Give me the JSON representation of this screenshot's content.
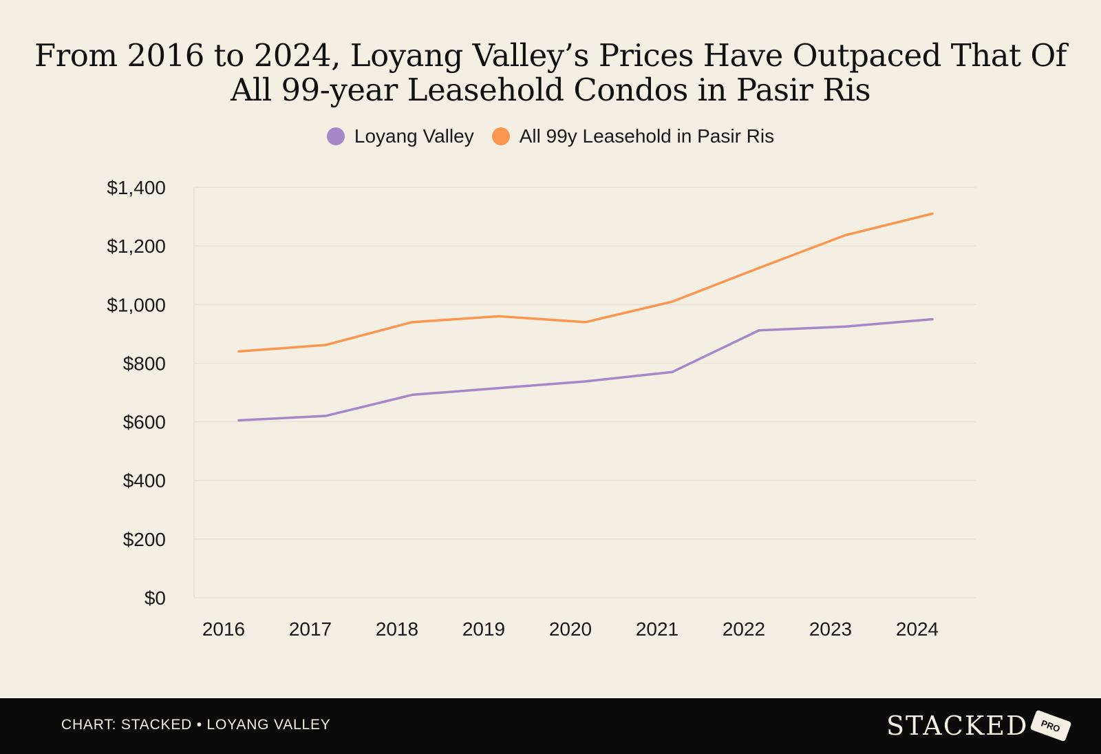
{
  "chart_data": {
    "type": "line",
    "title": "From 2016 to 2024, Loyang Valley’s Prices Have Outpaced That Of All 99-year Leasehold Condos in Pasir Ris",
    "title_lines": [
      "From 2016 to 2024, Loyang Valley’s Prices Have Outpaced That Of",
      "All 99-year Leasehold Condos in Pasir Ris"
    ],
    "xlabel": "",
    "ylabel": "",
    "categories": [
      "2016",
      "2017",
      "2018",
      "2019",
      "2020",
      "2021",
      "2022",
      "2023",
      "2024"
    ],
    "series": [
      {
        "name": "Loyang Valley",
        "color": "#a687c8",
        "values": [
          605,
          620,
          692,
          715,
          738,
          770,
          912,
          925,
          950
        ]
      },
      {
        "name": "All 99y Leasehold in Pasir Ris",
        "color": "#fb9650",
        "values": [
          840,
          862,
          940,
          960,
          940,
          1010,
          1125,
          1237,
          1310
        ]
      }
    ],
    "ylim": [
      0,
      1400
    ],
    "yticks": [
      0,
      200,
      400,
      600,
      800,
      1000,
      1200,
      1400
    ],
    "ytick_labels": [
      "$0",
      "$200",
      "$400",
      "$600",
      "$800",
      "$1,000",
      "$1,200",
      "$1,400"
    ],
    "grid": true,
    "legend_position": "top-center"
  },
  "footer": {
    "caption": "CHART: STACKED • LOYANG VALLEY",
    "brand": "STACKED",
    "badge": "PRO"
  },
  "colors": {
    "background": "#f3efe3",
    "gridline": "#e6e1d4",
    "text": "#111111",
    "footer_background": "#0a0a0a"
  }
}
